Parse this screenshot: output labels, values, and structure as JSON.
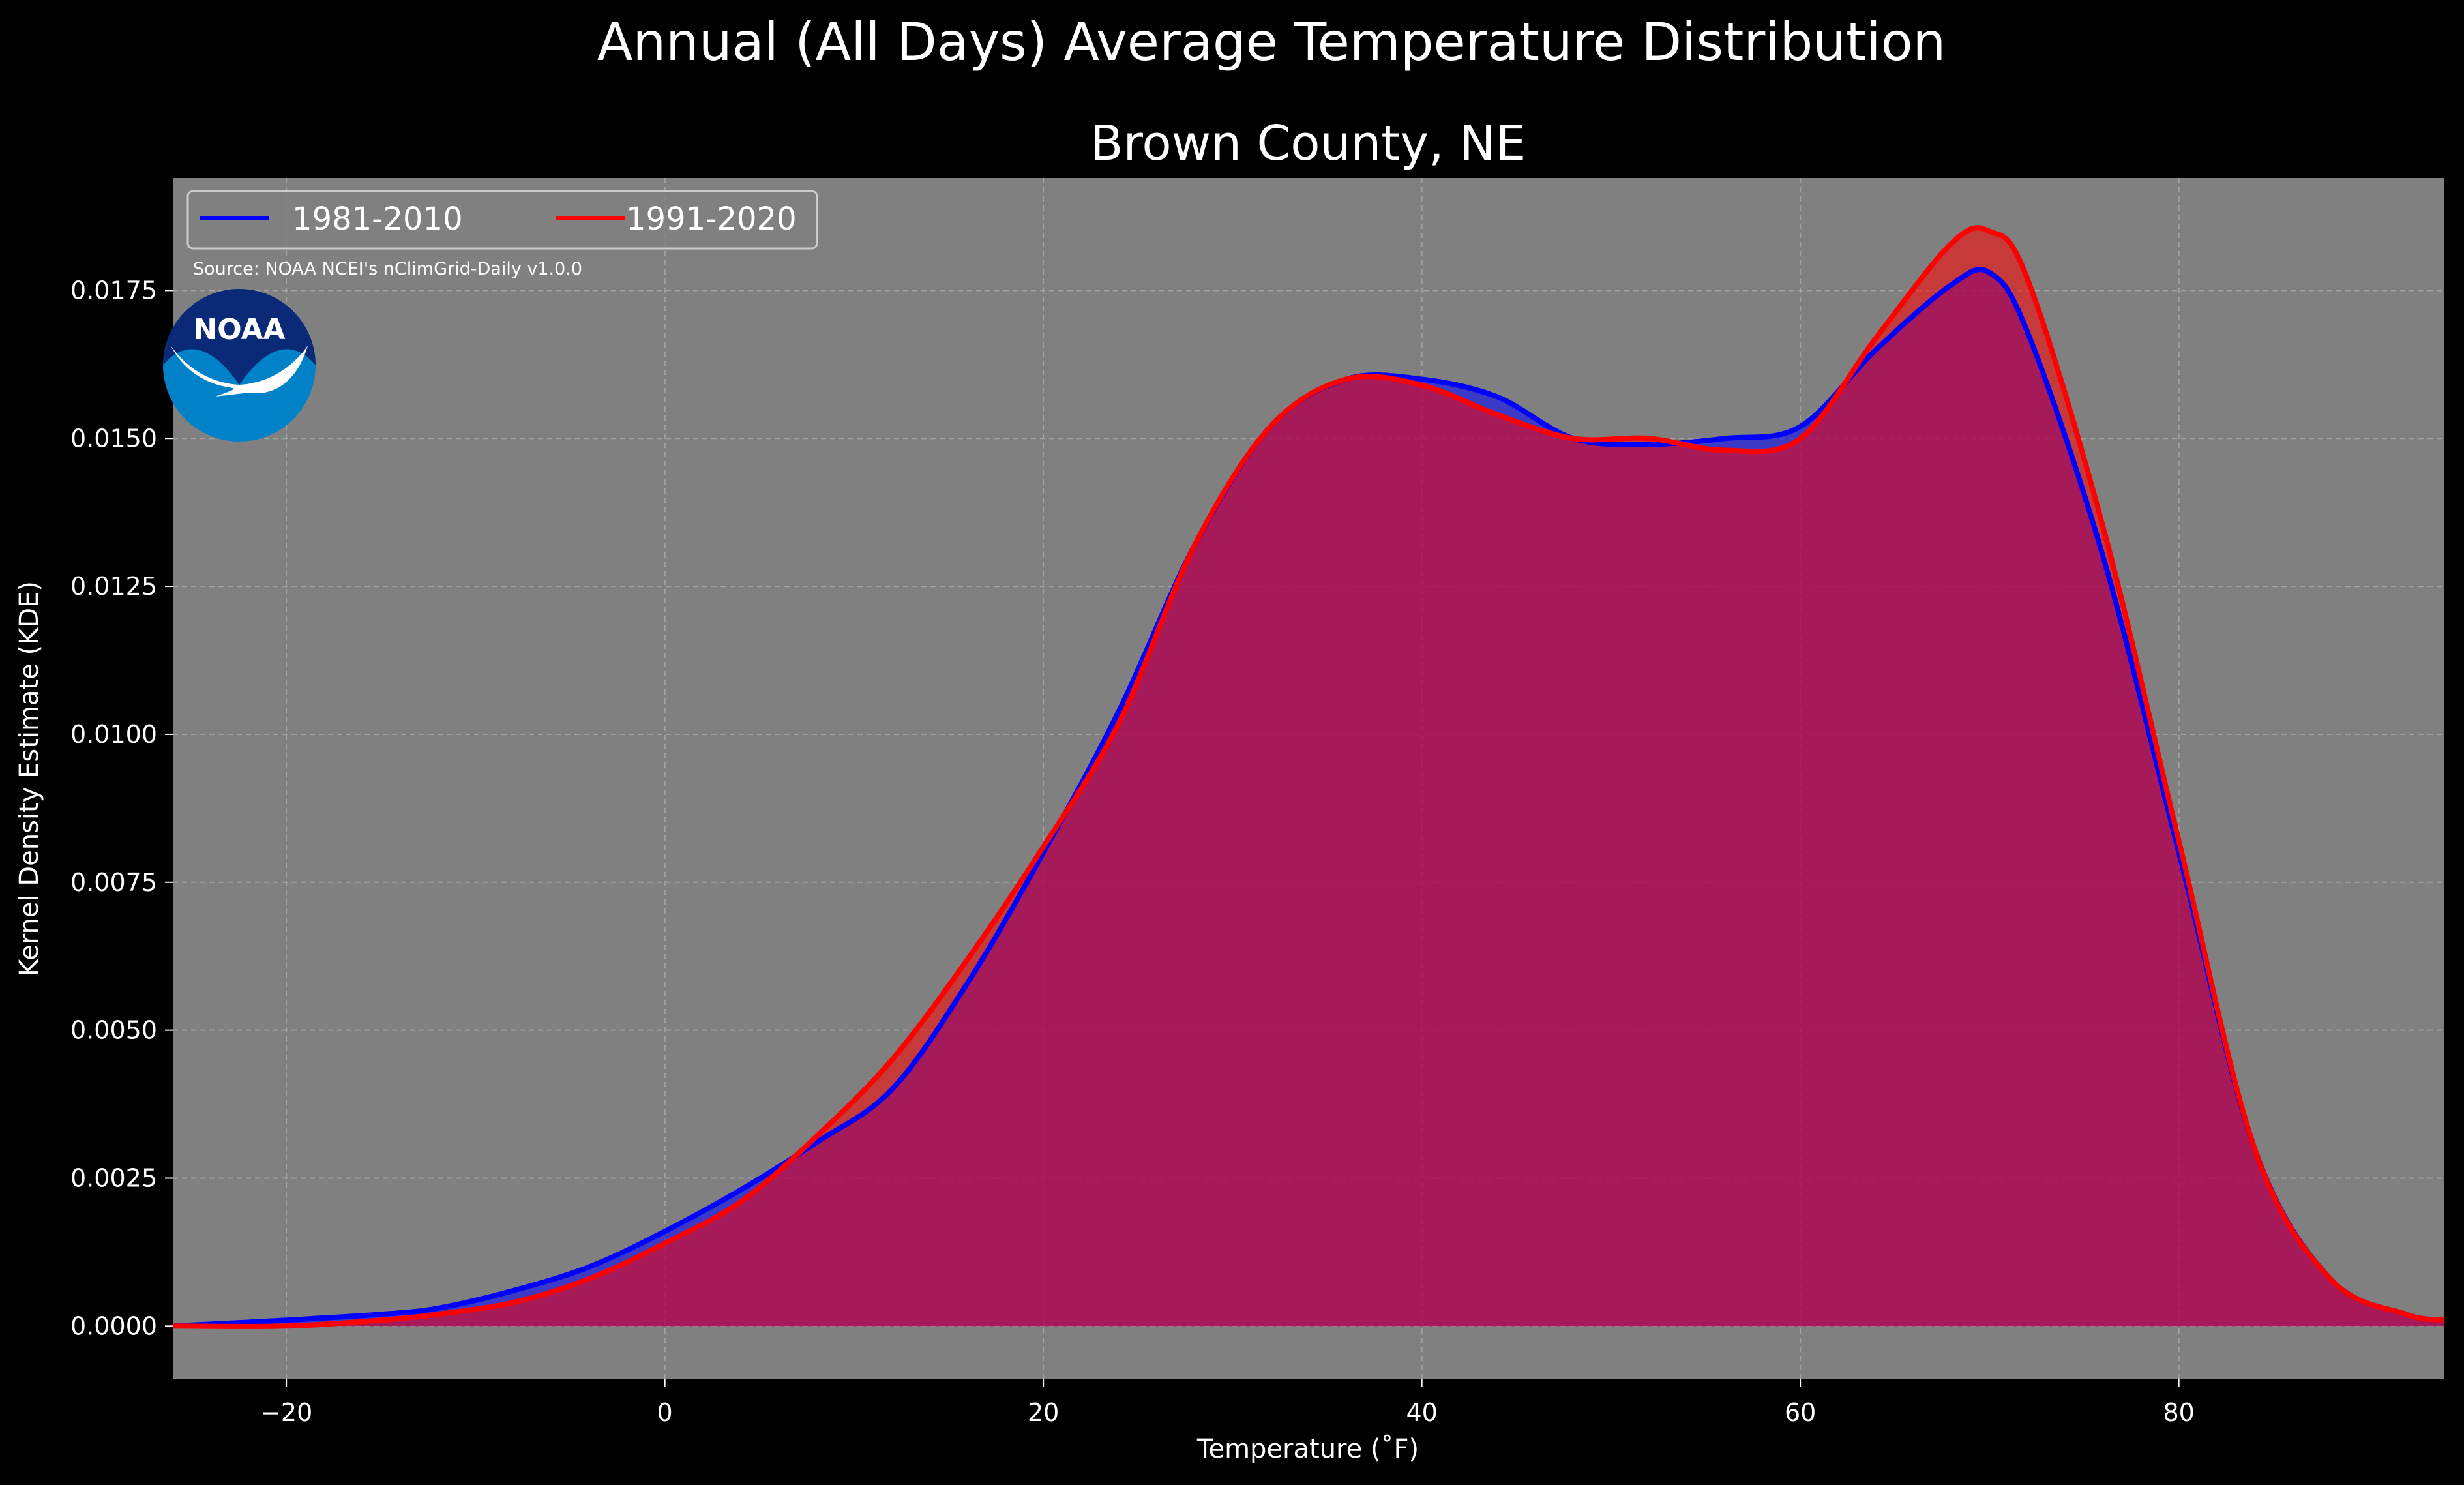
{
  "suptitle": "Annual (All Days) Average Temperature Distribution",
  "source": "Source: NOAA NCEI's nClimGrid-Daily v1.0.0",
  "logo_text": "NOAA",
  "colors": {
    "background": "#000000",
    "plot_background": "#808080",
    "series_1981": "#0000ff",
    "series_1991": "#ff0000",
    "overlap_fill": "#9e1f5e",
    "logo_blue": "#0081c8",
    "logo_navy": "#0a2a78"
  },
  "chart_data": {
    "type": "area",
    "title": "Brown County, NE",
    "xlabel": "Temperature ($^\\circ$F)",
    "xlabel_display": "Temperature (˚F)",
    "ylabel": "Kernel Density Estimate (KDE)",
    "xlim": [
      -26,
      94
    ],
    "ylim": [
      -0.0009,
      0.0194
    ],
    "xticks": [
      -20,
      0,
      20,
      40,
      60,
      80
    ],
    "yticks": [
      0.0,
      0.0025,
      0.005,
      0.0075,
      0.01,
      0.0125,
      0.015,
      0.0175
    ],
    "ytick_labels": [
      "0.0000",
      "0.0025",
      "0.0050",
      "0.0075",
      "0.0100",
      "0.0125",
      "0.0150",
      "0.0175"
    ],
    "grid": true,
    "legend_position": "top-left",
    "legend_columns": 2,
    "series": [
      {
        "name": "1981-2010",
        "color": "#0000ff",
        "x": [
          -26,
          -20,
          -15,
          -12,
          -8,
          -4,
          0,
          4,
          8,
          12,
          16,
          20,
          24,
          28,
          32,
          36,
          40,
          44,
          48,
          52,
          56,
          60,
          64,
          68,
          70,
          72,
          76,
          80,
          84,
          88,
          92,
          94
        ],
        "y": [
          0.0,
          0.0001,
          0.0002,
          0.0003,
          0.0006,
          0.001,
          0.0016,
          0.0023,
          0.0031,
          0.004,
          0.0058,
          0.008,
          0.0104,
          0.0132,
          0.0152,
          0.016,
          0.016,
          0.0157,
          0.015,
          0.0149,
          0.015,
          0.0152,
          0.0165,
          0.0176,
          0.0178,
          0.0168,
          0.013,
          0.008,
          0.003,
          0.0008,
          0.0002,
          0.0001
        ]
      },
      {
        "name": "1991-2020",
        "color": "#ff0000",
        "x": [
          -26,
          -20,
          -15,
          -12,
          -8,
          -4,
          0,
          4,
          8,
          12,
          16,
          20,
          24,
          28,
          32,
          36,
          40,
          44,
          48,
          52,
          56,
          60,
          64,
          68,
          70,
          72,
          76,
          80,
          84,
          88,
          92,
          94
        ],
        "y": [
          0.0,
          0.0,
          0.0001,
          0.0002,
          0.0004,
          0.0008,
          0.0014,
          0.0021,
          0.0032,
          0.0045,
          0.0062,
          0.0081,
          0.0102,
          0.0132,
          0.0152,
          0.016,
          0.0159,
          0.0154,
          0.015,
          0.015,
          0.0148,
          0.015,
          0.0167,
          0.0183,
          0.0185,
          0.0177,
          0.0135,
          0.0082,
          0.003,
          0.0008,
          0.0002,
          0.0001
        ]
      }
    ]
  }
}
